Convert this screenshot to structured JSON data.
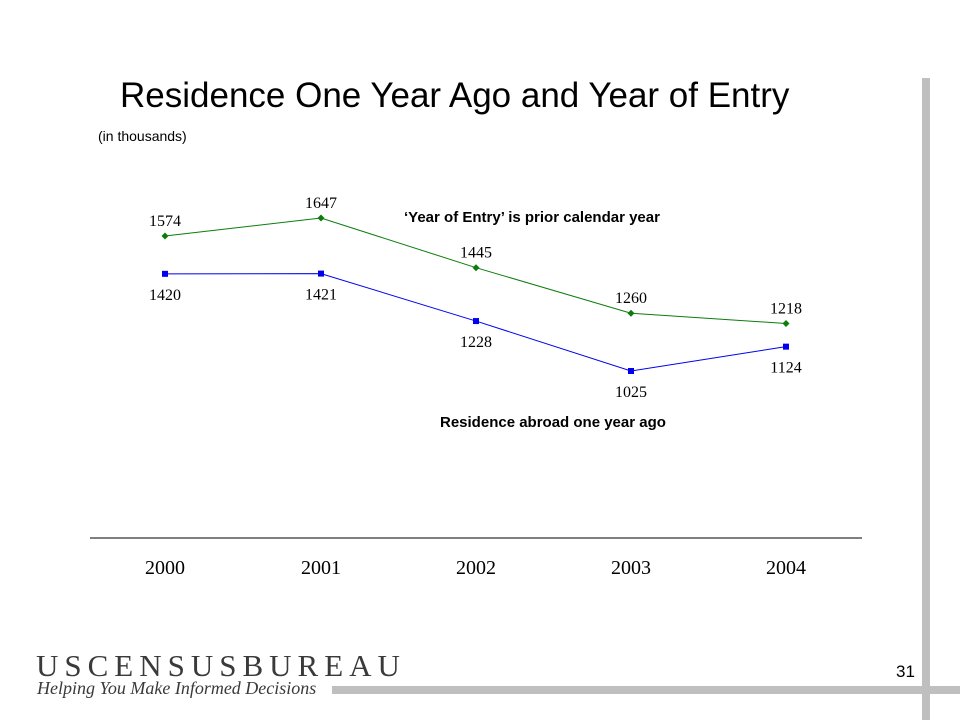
{
  "slide": {
    "title": "Residence One Year Ago and Year of Entry",
    "subtitle": "(in thousands)",
    "page_number": "31"
  },
  "branding": {
    "logo_text": "USCENSUSBUREAU",
    "tagline": "Helping You Make Informed Decisions"
  },
  "chart_data": {
    "type": "line",
    "title": "Residence One Year Ago and Year of Entry",
    "subtitle": "(in thousands)",
    "categories": [
      "2000",
      "2001",
      "2002",
      "2003",
      "2004"
    ],
    "ylim": [
      900,
      1750
    ],
    "grid": false,
    "legend": "none",
    "series": [
      {
        "name": "‘Year of Entry’ is prior calendar year",
        "values": [
          1574,
          1647,
          1445,
          1260,
          1218
        ],
        "color": "#0b7d0b",
        "marker": "diamond",
        "label_position": [
          "above",
          "above",
          "above",
          "above",
          "above"
        ]
      },
      {
        "name": "Residence abroad one year ago",
        "values": [
          1420,
          1421,
          1228,
          1025,
          1124
        ],
        "color": "#0000ee",
        "marker": "square",
        "label_position": [
          "below",
          "below",
          "below",
          "below",
          "below"
        ]
      }
    ]
  }
}
